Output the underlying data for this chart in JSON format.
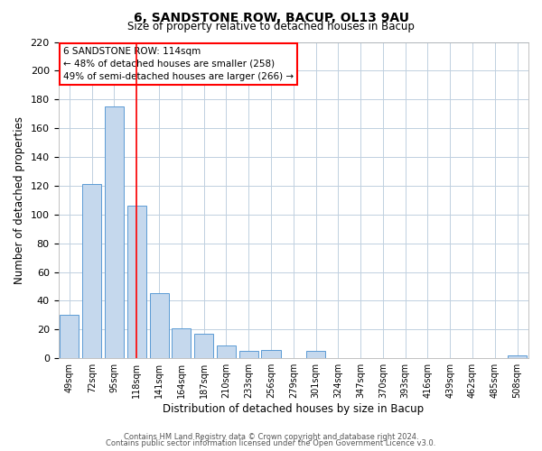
{
  "title": "6, SANDSTONE ROW, BACUP, OL13 9AU",
  "subtitle": "Size of property relative to detached houses in Bacup",
  "xlabel": "Distribution of detached houses by size in Bacup",
  "ylabel": "Number of detached properties",
  "bar_labels": [
    "49sqm",
    "72sqm",
    "95sqm",
    "118sqm",
    "141sqm",
    "164sqm",
    "187sqm",
    "210sqm",
    "233sqm",
    "256sqm",
    "279sqm",
    "301sqm",
    "324sqm",
    "347sqm",
    "370sqm",
    "393sqm",
    "416sqm",
    "439sqm",
    "462sqm",
    "485sqm",
    "508sqm"
  ],
  "bar_values": [
    30,
    121,
    175,
    106,
    45,
    21,
    17,
    9,
    5,
    6,
    0,
    5,
    0,
    0,
    0,
    0,
    0,
    0,
    0,
    0,
    2
  ],
  "bar_color": "#c5d8ed",
  "bar_edge_color": "#5b9bd5",
  "vline_x": 3.0,
  "vline_color": "#ff0000",
  "ylim": [
    0,
    220
  ],
  "yticks": [
    0,
    20,
    40,
    60,
    80,
    100,
    120,
    140,
    160,
    180,
    200,
    220
  ],
  "annotation_title": "6 SANDSTONE ROW: 114sqm",
  "annotation_line1": "← 48% of detached houses are smaller (258)",
  "annotation_line2": "49% of semi-detached houses are larger (266) →",
  "footer_line1": "Contains HM Land Registry data © Crown copyright and database right 2024.",
  "footer_line2": "Contains public sector information licensed under the Open Government Licence v3.0.",
  "background_color": "#ffffff",
  "grid_color": "#c0d0e0"
}
